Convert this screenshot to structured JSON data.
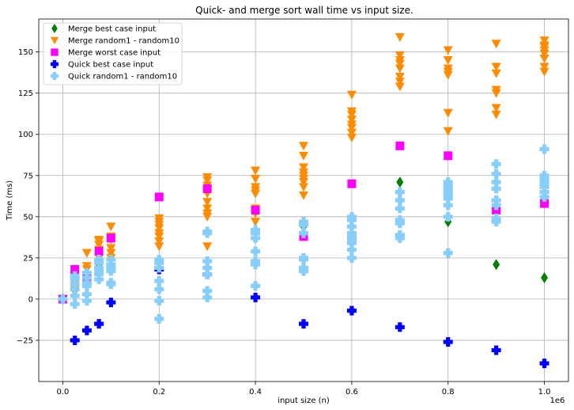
{
  "chart_data": {
    "type": "scatter",
    "title": "Quick- and merge sort wall time vs input size.",
    "xlabel": "input size (n)",
    "ylabel": "Time (ms)",
    "x_offset_label": "1e6",
    "xlim": [
      -0.05,
      1.05
    ],
    "ylim": [
      -50,
      170
    ],
    "x_ticks": [
      0.0,
      0.2,
      0.4,
      0.6,
      0.8,
      1.0
    ],
    "x_tick_labels": [
      "0.0",
      "0.2",
      "0.4",
      "0.6",
      "0.8",
      "1.0"
    ],
    "y_ticks": [
      -25,
      0,
      25,
      50,
      75,
      100,
      125,
      150
    ],
    "y_tick_labels": [
      "−25",
      "0",
      "25",
      "50",
      "75",
      "100",
      "125",
      "150"
    ],
    "grid": true,
    "legend_position": "top-left",
    "series": [
      {
        "name": "Merge best case input",
        "marker": "diamond",
        "color": "#008000",
        "points": [
          [
            0.0,
            0
          ],
          [
            0.025,
            10
          ],
          [
            0.05,
            12
          ],
          [
            0.075,
            21
          ],
          [
            0.1,
            37
          ],
          [
            0.2,
            48
          ],
          [
            0.3,
            52
          ],
          [
            0.4,
            41
          ],
          [
            0.5,
            44
          ],
          [
            0.6,
            44
          ],
          [
            0.7,
            71
          ],
          [
            0.8,
            47
          ],
          [
            0.9,
            21
          ],
          [
            1.0,
            13
          ]
        ]
      },
      {
        "name": "Merge random1 - random10",
        "marker": "triangle-down",
        "color": "#ff8c00",
        "points": [
          [
            0.0,
            0
          ],
          [
            0.0,
            0
          ],
          [
            0.0,
            0
          ],
          [
            0.025,
            4
          ],
          [
            0.025,
            8
          ],
          [
            0.025,
            12
          ],
          [
            0.025,
            10
          ],
          [
            0.025,
            6
          ],
          [
            0.05,
            14
          ],
          [
            0.05,
            18
          ],
          [
            0.05,
            20
          ],
          [
            0.05,
            28
          ],
          [
            0.05,
            12
          ],
          [
            0.075,
            22
          ],
          [
            0.075,
            25
          ],
          [
            0.075,
            30
          ],
          [
            0.075,
            33
          ],
          [
            0.075,
            35
          ],
          [
            0.075,
            36
          ],
          [
            0.1,
            25
          ],
          [
            0.1,
            28
          ],
          [
            0.1,
            31
          ],
          [
            0.1,
            36
          ],
          [
            0.1,
            38
          ],
          [
            0.1,
            44
          ],
          [
            0.2,
            32
          ],
          [
            0.2,
            35
          ],
          [
            0.2,
            38
          ],
          [
            0.2,
            40
          ],
          [
            0.2,
            43
          ],
          [
            0.2,
            45
          ],
          [
            0.2,
            47
          ],
          [
            0.2,
            49
          ],
          [
            0.3,
            32
          ],
          [
            0.3,
            50
          ],
          [
            0.3,
            52
          ],
          [
            0.3,
            55
          ],
          [
            0.3,
            59
          ],
          [
            0.3,
            64
          ],
          [
            0.3,
            69
          ],
          [
            0.3,
            72
          ],
          [
            0.3,
            74
          ],
          [
            0.4,
            47
          ],
          [
            0.4,
            52
          ],
          [
            0.4,
            55
          ],
          [
            0.4,
            64
          ],
          [
            0.4,
            66
          ],
          [
            0.4,
            68
          ],
          [
            0.4,
            73
          ],
          [
            0.4,
            78
          ],
          [
            0.5,
            63
          ],
          [
            0.5,
            68
          ],
          [
            0.5,
            71
          ],
          [
            0.5,
            73
          ],
          [
            0.5,
            75
          ],
          [
            0.5,
            77
          ],
          [
            0.5,
            80
          ],
          [
            0.5,
            87
          ],
          [
            0.5,
            93
          ],
          [
            0.6,
            98
          ],
          [
            0.6,
            101
          ],
          [
            0.6,
            104
          ],
          [
            0.6,
            106
          ],
          [
            0.6,
            109
          ],
          [
            0.6,
            112
          ],
          [
            0.6,
            114
          ],
          [
            0.6,
            124
          ],
          [
            0.7,
            129
          ],
          [
            0.7,
            132
          ],
          [
            0.7,
            135
          ],
          [
            0.7,
            140
          ],
          [
            0.7,
            143
          ],
          [
            0.7,
            145
          ],
          [
            0.7,
            148
          ],
          [
            0.7,
            159
          ],
          [
            0.8,
            102
          ],
          [
            0.8,
            113
          ],
          [
            0.8,
            136
          ],
          [
            0.8,
            138
          ],
          [
            0.8,
            140
          ],
          [
            0.8,
            145
          ],
          [
            0.8,
            151
          ],
          [
            0.9,
            112
          ],
          [
            0.9,
            116
          ],
          [
            0.9,
            125
          ],
          [
            0.9,
            127
          ],
          [
            0.9,
            137
          ],
          [
            0.9,
            141
          ],
          [
            0.9,
            155
          ],
          [
            1.0,
            138
          ],
          [
            1.0,
            141
          ],
          [
            1.0,
            146
          ],
          [
            1.0,
            149
          ],
          [
            1.0,
            151
          ],
          [
            1.0,
            153
          ],
          [
            1.0,
            154
          ],
          [
            1.0,
            157
          ]
        ]
      },
      {
        "name": "Merge worst case input",
        "marker": "square",
        "color": "#ff00ff",
        "points": [
          [
            0.0,
            0
          ],
          [
            0.025,
            18
          ],
          [
            0.05,
            13
          ],
          [
            0.075,
            29
          ],
          [
            0.1,
            37
          ],
          [
            0.2,
            62
          ],
          [
            0.3,
            67
          ],
          [
            0.4,
            54
          ],
          [
            0.5,
            38
          ],
          [
            0.6,
            70
          ],
          [
            0.7,
            93
          ],
          [
            0.8,
            87
          ],
          [
            0.9,
            54
          ],
          [
            1.0,
            58
          ]
        ]
      },
      {
        "name": "Quick best case input",
        "marker": "plus",
        "color": "#0000ff",
        "points": [
          [
            0.0,
            0
          ],
          [
            0.025,
            -25
          ],
          [
            0.05,
            -19
          ],
          [
            0.075,
            -15
          ],
          [
            0.1,
            -2
          ],
          [
            0.2,
            18
          ],
          [
            0.3,
            15
          ],
          [
            0.4,
            1
          ],
          [
            0.5,
            -15
          ],
          [
            0.6,
            -7
          ],
          [
            0.7,
            -17
          ],
          [
            0.8,
            -26
          ],
          [
            0.9,
            -31
          ],
          [
            1.0,
            -39
          ]
        ]
      },
      {
        "name": "Quick random1 - random10",
        "marker": "plus",
        "color": "#87cefa",
        "points": [
          [
            0.0,
            0
          ],
          [
            0.0,
            0
          ],
          [
            0.0,
            0
          ],
          [
            0.025,
            -3
          ],
          [
            0.025,
            2
          ],
          [
            0.025,
            6
          ],
          [
            0.025,
            9
          ],
          [
            0.025,
            12
          ],
          [
            0.025,
            14
          ],
          [
            0.05,
            -1
          ],
          [
            0.05,
            3
          ],
          [
            0.05,
            8
          ],
          [
            0.05,
            10
          ],
          [
            0.05,
            13
          ],
          [
            0.05,
            16
          ],
          [
            0.075,
            12
          ],
          [
            0.075,
            15
          ],
          [
            0.075,
            17
          ],
          [
            0.075,
            19
          ],
          [
            0.075,
            22
          ],
          [
            0.075,
            24
          ],
          [
            0.1,
            9
          ],
          [
            0.1,
            10
          ],
          [
            0.1,
            17
          ],
          [
            0.1,
            19
          ],
          [
            0.1,
            21
          ],
          [
            0.1,
            24
          ],
          [
            0.2,
            -12
          ],
          [
            0.2,
            -1
          ],
          [
            0.2,
            6
          ],
          [
            0.2,
            11
          ],
          [
            0.2,
            19
          ],
          [
            0.2,
            22
          ],
          [
            0.2,
            24
          ],
          [
            0.3,
            1
          ],
          [
            0.3,
            5
          ],
          [
            0.3,
            15
          ],
          [
            0.3,
            19
          ],
          [
            0.3,
            23
          ],
          [
            0.3,
            40
          ],
          [
            0.3,
            41
          ],
          [
            0.4,
            8
          ],
          [
            0.4,
            21
          ],
          [
            0.4,
            23
          ],
          [
            0.4,
            29
          ],
          [
            0.4,
            37
          ],
          [
            0.4,
            40
          ],
          [
            0.4,
            42
          ],
          [
            0.5,
            17
          ],
          [
            0.5,
            19
          ],
          [
            0.5,
            24
          ],
          [
            0.5,
            25
          ],
          [
            0.5,
            40
          ],
          [
            0.5,
            45
          ],
          [
            0.5,
            47
          ],
          [
            0.6,
            25
          ],
          [
            0.6,
            30
          ],
          [
            0.6,
            34
          ],
          [
            0.6,
            36
          ],
          [
            0.6,
            38
          ],
          [
            0.6,
            40
          ],
          [
            0.6,
            44
          ],
          [
            0.6,
            48
          ],
          [
            0.6,
            50
          ],
          [
            0.7,
            37
          ],
          [
            0.7,
            39
          ],
          [
            0.7,
            46
          ],
          [
            0.7,
            48
          ],
          [
            0.7,
            55
          ],
          [
            0.7,
            60
          ],
          [
            0.7,
            65
          ],
          [
            0.8,
            28
          ],
          [
            0.8,
            50
          ],
          [
            0.8,
            57
          ],
          [
            0.8,
            61
          ],
          [
            0.8,
            63
          ],
          [
            0.8,
            65
          ],
          [
            0.8,
            67
          ],
          [
            0.8,
            69
          ],
          [
            0.8,
            71
          ],
          [
            0.9,
            47
          ],
          [
            0.9,
            49
          ],
          [
            0.9,
            57
          ],
          [
            0.9,
            60
          ],
          [
            0.9,
            67
          ],
          [
            0.9,
            71
          ],
          [
            0.9,
            76
          ],
          [
            0.9,
            82
          ],
          [
            1.0,
            62
          ],
          [
            1.0,
            65
          ],
          [
            1.0,
            68
          ],
          [
            1.0,
            70
          ],
          [
            1.0,
            72
          ],
          [
            1.0,
            74
          ],
          [
            1.0,
            75
          ],
          [
            1.0,
            91
          ]
        ]
      }
    ]
  }
}
